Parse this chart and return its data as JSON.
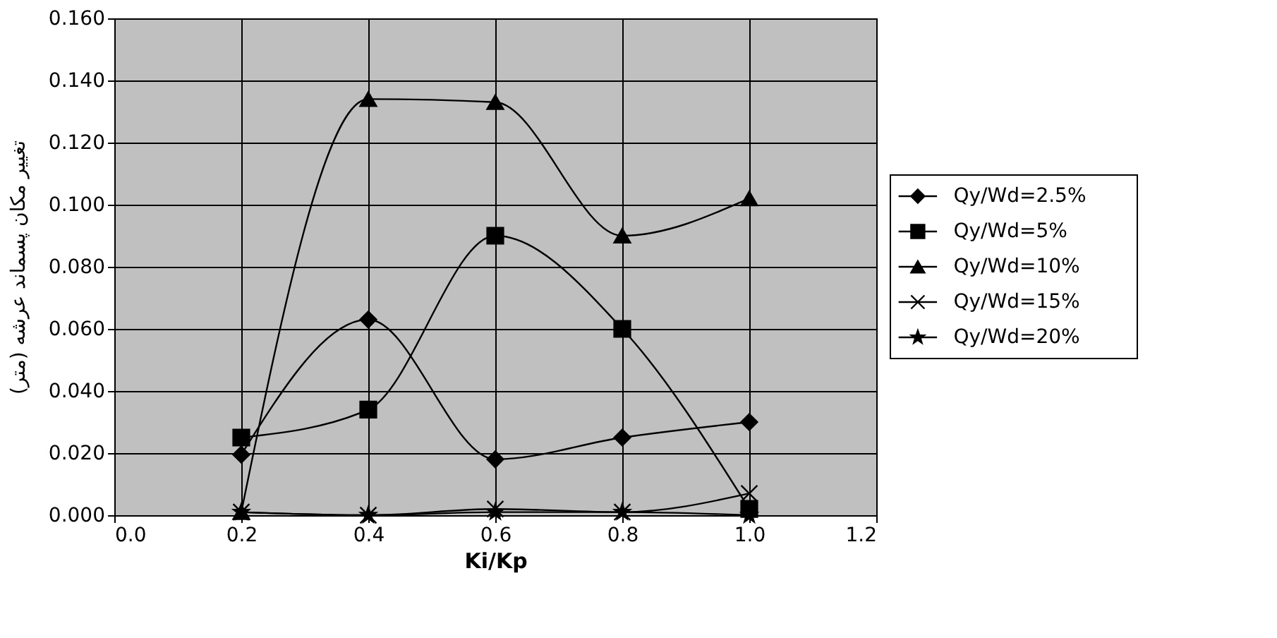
{
  "chart_data": {
    "type": "line",
    "xlabel": "Ki/Kp",
    "ylabel": "تغییر مکان پسماند عرشه (متر)",
    "x": [
      0.2,
      0.4,
      0.6,
      0.8,
      1.0
    ],
    "series": [
      {
        "name": "Qy/Wd=2.5%",
        "color": "#000000",
        "marker": "diamond",
        "values": [
          0.0195,
          0.063,
          0.018,
          0.025,
          0.03
        ]
      },
      {
        "name": "Qy/Wd=5%",
        "color": "#000000",
        "marker": "square",
        "values": [
          0.025,
          0.034,
          0.09,
          0.06,
          0.002
        ]
      },
      {
        "name": "Qy/Wd=10%",
        "color": "#000000",
        "marker": "triangle",
        "values": [
          0.001,
          0.134,
          0.133,
          0.09,
          0.102
        ]
      },
      {
        "name": "Qy/Wd=15%",
        "color": "#000000",
        "marker": "cross",
        "values": [
          0.001,
          0.0,
          0.002,
          0.001,
          0.007
        ]
      },
      {
        "name": "Qy/Wd=20%",
        "color": "#000000",
        "marker": "star",
        "values": [
          0.001,
          0.0,
          0.001,
          0.001,
          0.0
        ]
      }
    ],
    "xlim": [
      0.0,
      1.2
    ],
    "xticks": [
      {
        "value": 0.0,
        "label": "0.0"
      },
      {
        "value": 0.2,
        "label": "0.2"
      },
      {
        "value": 0.4,
        "label": "0.4"
      },
      {
        "value": 0.6,
        "label": "0.6"
      },
      {
        "value": 0.8,
        "label": "0.8"
      },
      {
        "value": 1.0,
        "label": "1.0"
      },
      {
        "value": 1.2,
        "label": "1.2"
      }
    ],
    "ylim": [
      0.0,
      0.16
    ],
    "yticks": [
      {
        "value": 0.0,
        "label": "0.000"
      },
      {
        "value": 0.02,
        "label": "0.020"
      },
      {
        "value": 0.04,
        "label": "0.040"
      },
      {
        "value": 0.06,
        "label": "0.060"
      },
      {
        "value": 0.08,
        "label": "0.080"
      },
      {
        "value": 0.1,
        "label": "0.100"
      },
      {
        "value": 0.12,
        "label": "0.120"
      },
      {
        "value": 0.14,
        "label": "0.140"
      },
      {
        "value": 0.16,
        "label": "0.160"
      }
    ],
    "grid": true,
    "legend": "right",
    "line_style": "solid"
  }
}
